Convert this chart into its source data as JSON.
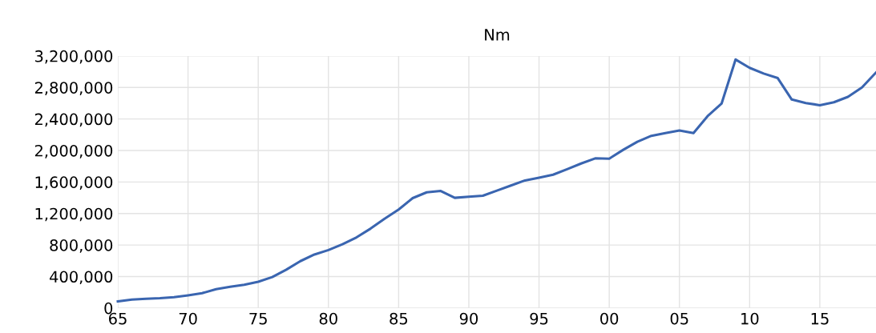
{
  "chart_data": {
    "type": "line",
    "title": "Nm",
    "x": [
      1965,
      1966,
      1967,
      1968,
      1969,
      1970,
      1971,
      1972,
      1973,
      1974,
      1975,
      1976,
      1977,
      1978,
      1979,
      1980,
      1981,
      1982,
      1983,
      1984,
      1985,
      1986,
      1987,
      1988,
      1989,
      1990,
      1991,
      1992,
      1993,
      1994,
      1995,
      1996,
      1997,
      1998,
      1999,
      2000,
      2001,
      2002,
      2003,
      2004,
      2005,
      2006,
      2007,
      2008,
      2009,
      2010,
      2011,
      2012,
      2013,
      2014,
      2015,
      2016,
      2017,
      2018,
      2019
    ],
    "series": [
      {
        "color": "#3a65b0",
        "values": [
          84000,
          108000,
          118000,
          124000,
          138000,
          161000,
          188000,
          239000,
          269000,
          296000,
          333000,
          393000,
          487000,
          595000,
          679000,
          736000,
          810000,
          897000,
          1008000,
          1133000,
          1250000,
          1395000,
          1469000,
          1486000,
          1399000,
          1412000,
          1426000,
          1490000,
          1555000,
          1620000,
          1654000,
          1692000,
          1763000,
          1835000,
          1900000,
          1896000,
          2009000,
          2111000,
          2186000,
          2220000,
          2254000,
          2220000,
          2435000,
          2595000,
          3155000,
          3049000,
          2977000,
          2919000,
          2647000,
          2602000,
          2575000,
          2612000,
          2681000,
          2800000,
          2990000
        ]
      }
    ],
    "xlim": [
      1965,
      2019
    ],
    "xticks": [
      {
        "value": 1965,
        "label": "65"
      },
      {
        "value": 1970,
        "label": "70"
      },
      {
        "value": 1975,
        "label": "75"
      },
      {
        "value": 1980,
        "label": "80"
      },
      {
        "value": 1985,
        "label": "85"
      },
      {
        "value": 1990,
        "label": "90"
      },
      {
        "value": 1995,
        "label": "95"
      },
      {
        "value": 2000,
        "label": "00"
      },
      {
        "value": 2005,
        "label": "05"
      },
      {
        "value": 2010,
        "label": "10"
      },
      {
        "value": 2015,
        "label": "15"
      }
    ],
    "ylim": [
      0,
      3200000
    ],
    "yticks": [
      {
        "value": 0,
        "label": "0"
      },
      {
        "value": 400000,
        "label": "400,000"
      },
      {
        "value": 800000,
        "label": "800,000"
      },
      {
        "value": 1200000,
        "label": "1,200,000"
      },
      {
        "value": 1600000,
        "label": "1,600,000"
      },
      {
        "value": 2000000,
        "label": "2,000,000"
      },
      {
        "value": 2400000,
        "label": "2,400,000"
      },
      {
        "value": 2800000,
        "label": "2,800,000"
      },
      {
        "value": 3200000,
        "label": "3,200,000"
      }
    ],
    "grid": true
  }
}
